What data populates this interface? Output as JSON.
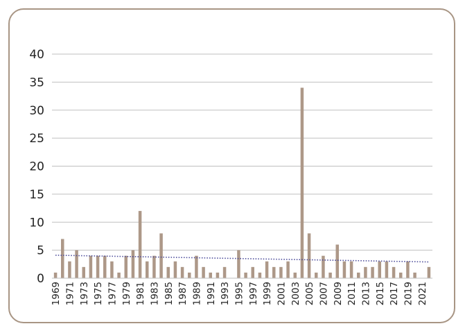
{
  "chart_data": {
    "type": "bar",
    "title": "",
    "xlabel": "",
    "ylabel": "",
    "ylim": [
      0,
      40
    ],
    "yticks": [
      0,
      5,
      10,
      15,
      20,
      25,
      30,
      35,
      40
    ],
    "grid": true,
    "legend": "none",
    "bar_color": "#ad9888",
    "trendline": {
      "type": "linear",
      "style": "dotted",
      "color": "#4b4b9a",
      "start_value": 4.1,
      "end_value": 2.9
    },
    "x": [
      1969,
      1970,
      1971,
      1972,
      1973,
      1974,
      1975,
      1976,
      1977,
      1978,
      1979,
      1980,
      1981,
      1982,
      1983,
      1984,
      1985,
      1986,
      1987,
      1988,
      1989,
      1990,
      1991,
      1992,
      1993,
      1994,
      1995,
      1996,
      1997,
      1998,
      1999,
      2000,
      2001,
      2002,
      2003,
      2004,
      2005,
      2006,
      2007,
      2008,
      2009,
      2010,
      2011,
      2012,
      2013,
      2014,
      2015,
      2016,
      2017,
      2018,
      2019,
      2020,
      2021,
      2022
    ],
    "tick_labels": [
      "1969",
      "1971",
      "1973",
      "1975",
      "1977",
      "1979",
      "1981",
      "1983",
      "1985",
      "1987",
      "1989",
      "1991",
      "1993",
      "1995",
      "1997",
      "1999",
      "2001",
      "2003",
      "2005",
      "2007",
      "2009",
      "2011",
      "2013",
      "2015",
      "2017",
      "2019",
      "2021"
    ],
    "values": [
      1,
      7,
      3,
      5,
      2,
      4,
      4,
      4,
      3,
      1,
      4,
      5,
      12,
      3,
      4,
      8,
      2,
      3,
      2,
      1,
      4,
      2,
      1,
      1,
      2,
      0,
      5,
      1,
      2,
      1,
      3,
      2,
      2,
      3,
      1,
      34,
      8,
      1,
      4,
      1,
      6,
      3,
      3,
      1,
      2,
      2,
      3,
      3,
      2,
      1,
      3,
      1,
      0,
      2
    ]
  }
}
